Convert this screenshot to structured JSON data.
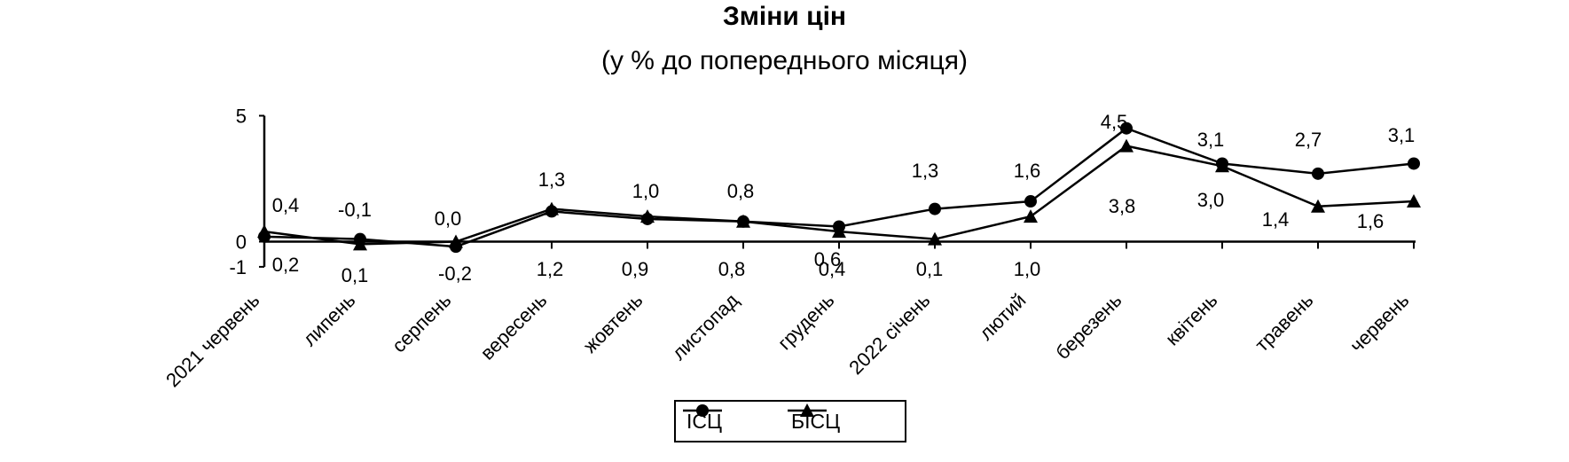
{
  "chart_data": {
    "type": "line",
    "title": "Зміни цін",
    "subtitle": "(у % до попереднього місяця)",
    "categories": [
      "2021 червень",
      "липень",
      "серпень",
      "вересень",
      "жовтень",
      "листопад",
      "грудень",
      "2022 січень",
      "лютий",
      "березень",
      "квітень",
      "травень",
      "червень"
    ],
    "ylim": [
      -1,
      5
    ],
    "yticks": [
      5,
      0,
      -1
    ],
    "grid": false,
    "legend_position": "bottom",
    "series": [
      {
        "name": "ІСЦ",
        "marker": "circle",
        "color": "#000000",
        "values": [
          0.2,
          0.1,
          -0.2,
          1.2,
          0.9,
          0.8,
          0.6,
          1.3,
          1.6,
          4.5,
          3.1,
          2.7,
          3.1
        ],
        "labels": [
          "0,2",
          "0,1",
          "-0,2",
          "1,2",
          "0,9",
          "0,8",
          "0,6",
          "1,3",
          "1,6",
          "4,5",
          "3,1",
          "2,7",
          "3,1"
        ]
      },
      {
        "name": "БІСЦ",
        "marker": "triangle",
        "color": "#000000",
        "values": [
          0.4,
          -0.1,
          0.0,
          1.3,
          1.0,
          0.8,
          0.4,
          0.1,
          1.0,
          3.8,
          3.0,
          1.4,
          1.6
        ],
        "labels": [
          "0,4",
          "-0,1",
          "0,0",
          "1,3",
          "1,0",
          "0,8",
          "0,4",
          "0,1",
          "1,0",
          "3,8",
          "3,0",
          "1,4",
          "1,6"
        ]
      }
    ]
  }
}
